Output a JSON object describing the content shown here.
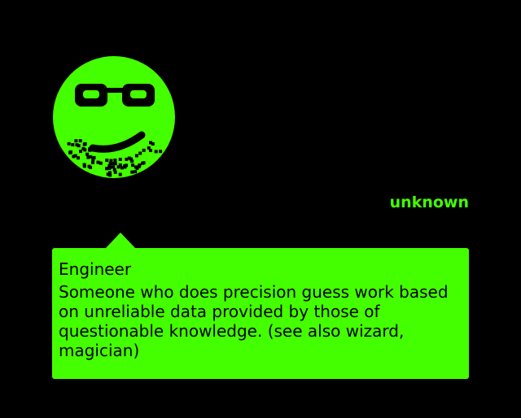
{
  "avatar": {
    "icon": "sunglasses-smiley-icon",
    "color": "#44ff00"
  },
  "author": "unknown",
  "entry": {
    "term": "Engineer",
    "definition": "Someone who does precision guess work based on unreliable data provided by those of questionable knowledge. (see also wizard, magician)"
  },
  "colors": {
    "background": "#000000",
    "accent": "#44ff00",
    "text_on_accent": "#000000"
  }
}
